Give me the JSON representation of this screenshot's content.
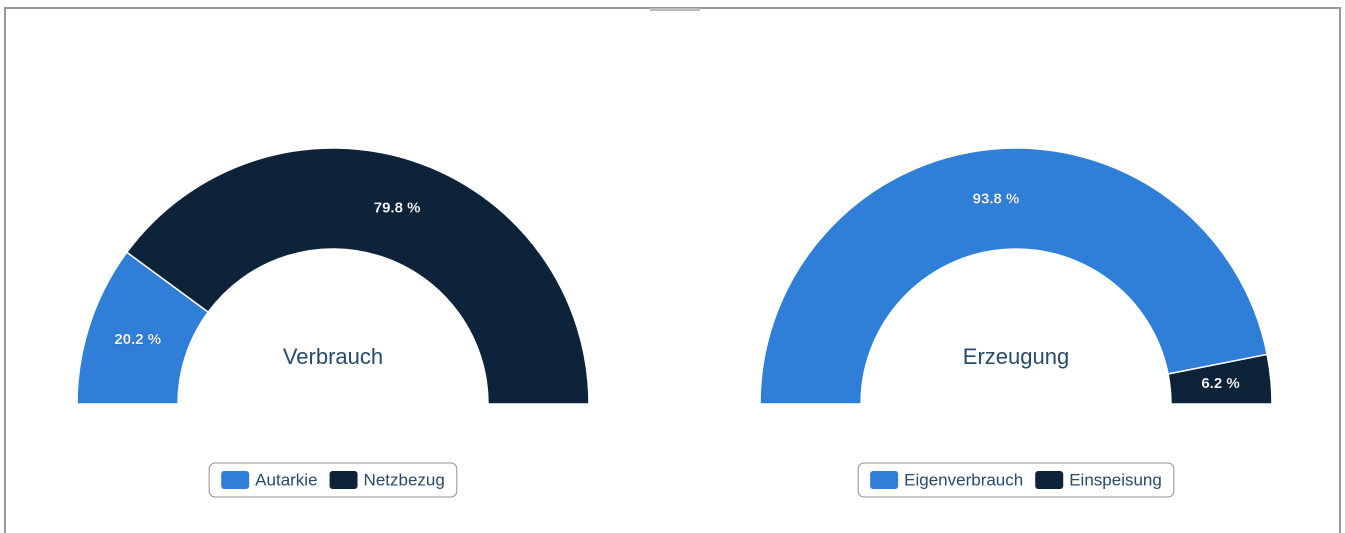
{
  "chart_data": [
    {
      "type": "pie",
      "title": "Verbrauch",
      "categories": [
        "Autarkie",
        "Netzbezug"
      ],
      "values": [
        20.2,
        79.8
      ],
      "value_labels": [
        "20.2 %",
        "79.8 %"
      ],
      "colors": [
        "#2f7ed8",
        "#0d233a"
      ]
    },
    {
      "type": "pie",
      "title": "Erzeugung",
      "categories": [
        "Eigenverbrauch",
        "Einspeisung"
      ],
      "values": [
        93.8,
        6.2
      ],
      "value_labels": [
        "93.8 %",
        "6.2 %"
      ],
      "colors": [
        "#2f7ed8",
        "#0d233a"
      ]
    }
  ]
}
